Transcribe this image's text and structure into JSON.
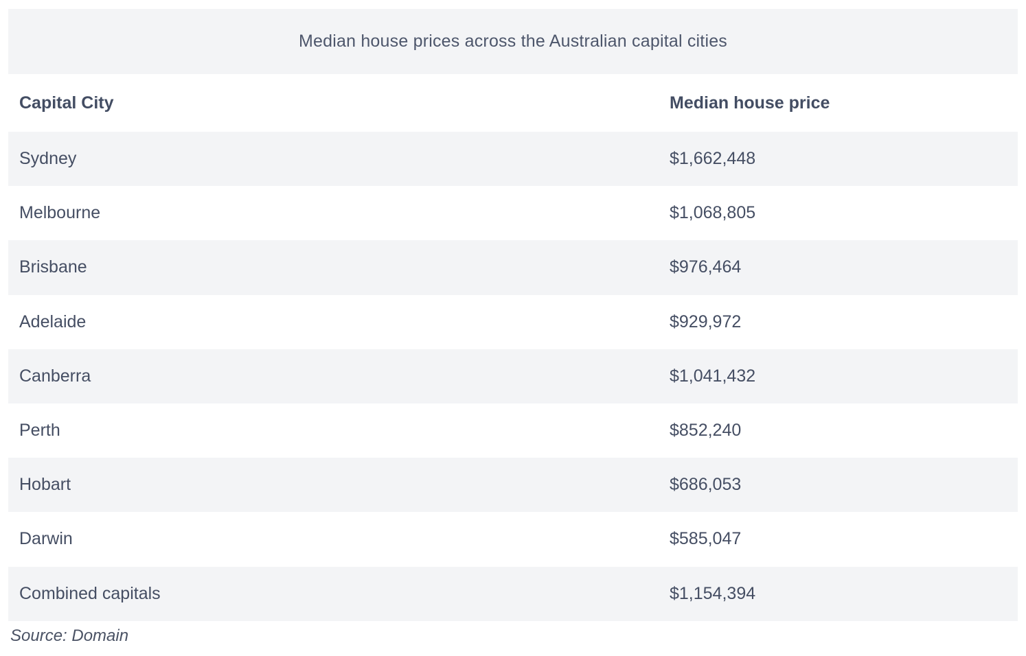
{
  "chart_data": {
    "type": "table",
    "title": "Median house prices across the Australian capital cities",
    "columns": [
      "Capital City",
      "Median house price"
    ],
    "categories": [
      "Sydney",
      "Melbourne",
      "Brisbane",
      "Adelaide",
      "Canberra",
      "Perth",
      "Hobart",
      "Darwin",
      "Combined capitals"
    ],
    "values": [
      1662448,
      1068805,
      976464,
      929972,
      1041432,
      852240,
      686053,
      585047,
      1154394
    ],
    "rows": [
      {
        "city": "Sydney",
        "price": "$1,662,448"
      },
      {
        "city": "Melbourne",
        "price": "$1,068,805"
      },
      {
        "city": "Brisbane",
        "price": "$976,464"
      },
      {
        "city": "Adelaide",
        "price": "$929,972"
      },
      {
        "city": "Canberra",
        "price": "$1,041,432"
      },
      {
        "city": "Perth",
        "price": "$852,240"
      },
      {
        "city": "Hobart",
        "price": "$686,053"
      },
      {
        "city": "Darwin",
        "price": "$585,047"
      },
      {
        "city": "Combined capitals",
        "price": "$1,154,394"
      }
    ],
    "source": "Source: Domain",
    "layout": {
      "zebra_striping": true,
      "title_position": "top-center",
      "source_position": "bottom-left"
    }
  },
  "colors": {
    "band_background": "#f3f4f6",
    "row_alt_background": "#ffffff",
    "text": "#454e63",
    "header_text": "#434d63",
    "page_background": "#ffffff"
  }
}
